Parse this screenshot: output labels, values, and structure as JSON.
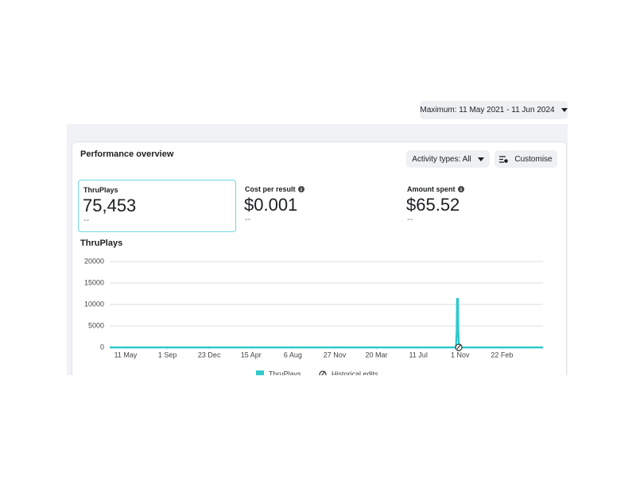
{
  "date_range": "Maximum: 11 May 2021 - 11 Jun 2024",
  "panel": {
    "title": "Performance overview",
    "buttons": [
      "Activity types: All",
      "Customise"
    ],
    "metrics": [
      {
        "label": "ThruPlays",
        "value": "75,453",
        "comparison": "--"
      },
      {
        "label": "Cost per result",
        "value": "$0.001",
        "comparison": "--"
      },
      {
        "label": "Amount spent",
        "value": "$65.52",
        "comparison": "--"
      }
    ]
  },
  "chart_data": {
    "type": "line",
    "title": "ThruPlays",
    "x": [
      0,
      936,
      938,
      939,
      940,
      941,
      942,
      944,
      1171
    ],
    "series": [
      {
        "name": "ThruPlays",
        "color": "#2fc9cc",
        "values": [
          0,
          0,
          3800,
          11500,
          6500,
          11500,
          4000,
          0,
          0
        ]
      }
    ],
    "xlim": [
      0,
      1171
    ],
    "xticks": [
      {
        "value": 43,
        "label": "11 May"
      },
      {
        "value": 156,
        "label": "1 Sep"
      },
      {
        "value": 269,
        "label": "23 Dec"
      },
      {
        "value": 382,
        "label": "15 Apr"
      },
      {
        "value": 495,
        "label": "6 Aug"
      },
      {
        "value": 608,
        "label": "27 Nov"
      },
      {
        "value": 721,
        "label": "20 Mar"
      },
      {
        "value": 834,
        "label": "11 Jul"
      },
      {
        "value": 947,
        "label": "1 Nov"
      },
      {
        "value": 1060,
        "label": "22 Feb"
      }
    ],
    "ylim": [
      0,
      20000
    ],
    "yticks": [
      0,
      5000,
      10000,
      15000,
      20000
    ],
    "grid": true,
    "legend_extra": "Historical edits"
  }
}
